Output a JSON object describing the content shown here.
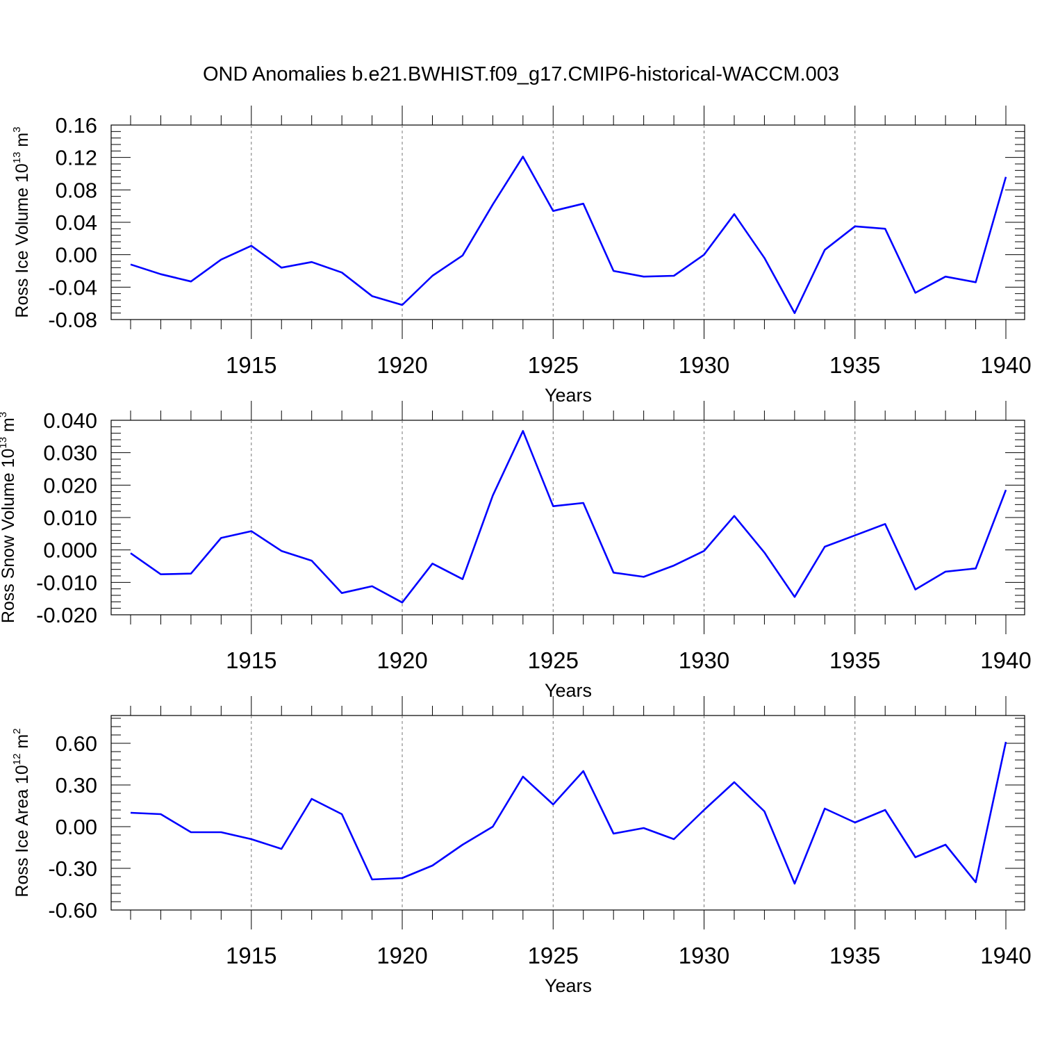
{
  "title": "OND Anomalies b.e21.BWHIST.f09_g17.CMIP6-historical-WACCM.003",
  "line_color": "#0000ff",
  "chart_data": [
    {
      "type": "line",
      "xlabel": "Years",
      "ylabel": "Ross Ice Volume 10",
      "ylabel_exp": "13",
      "ylabel_unit": " m",
      "ylabel_unit_exp": "3",
      "xlim": [
        1911,
        1940
      ],
      "ylim": [
        -0.08,
        0.16
      ],
      "x_ticks": [
        "1915",
        "1920",
        "1925",
        "1930",
        "1935",
        "1940"
      ],
      "y_ticks": [
        "0.16",
        "0.12",
        "0.08",
        "0.04",
        "0.00",
        "-0.04",
        "-0.08"
      ],
      "series": [
        {
          "x": [
            1911,
            1912,
            1913,
            1914,
            1915,
            1916,
            1917,
            1918,
            1919,
            1920,
            1921,
            1922,
            1923,
            1924,
            1925,
            1926,
            1927,
            1928,
            1929,
            1930,
            1931,
            1932,
            1933,
            1934,
            1935,
            1936,
            1937,
            1938,
            1939,
            1940
          ],
          "values": [
            -0.012,
            -0.024,
            -0.033,
            -0.006,
            0.011,
            -0.016,
            -0.009,
            -0.022,
            -0.051,
            -0.062,
            -0.026,
            -0.001,
            0.062,
            0.121,
            0.054,
            0.063,
            -0.02,
            -0.027,
            -0.026,
            0.0,
            0.05,
            -0.004,
            -0.072,
            0.006,
            0.035,
            0.032,
            -0.047,
            -0.027,
            -0.034,
            0.096
          ]
        }
      ]
    },
    {
      "type": "line",
      "xlabel": "Years",
      "ylabel": "Ross Snow Volume 10",
      "ylabel_exp": "13",
      "ylabel_unit": " m",
      "ylabel_unit_exp": "3",
      "xlim": [
        1911,
        1940
      ],
      "ylim": [
        -0.02,
        0.04
      ],
      "x_ticks": [
        "1915",
        "1920",
        "1925",
        "1930",
        "1935",
        "1940"
      ],
      "y_ticks": [
        "0.040",
        "0.030",
        "0.020",
        "0.010",
        "0.000",
        "-0.010",
        "-0.020"
      ],
      "series": [
        {
          "x": [
            1911,
            1912,
            1913,
            1914,
            1915,
            1916,
            1917,
            1918,
            1919,
            1920,
            1921,
            1922,
            1923,
            1924,
            1925,
            1926,
            1927,
            1928,
            1929,
            1930,
            1931,
            1932,
            1933,
            1934,
            1935,
            1936,
            1937,
            1938,
            1939,
            1940
          ],
          "values": [
            -0.001,
            -0.0075,
            -0.0073,
            0.0037,
            0.0058,
            -0.0003,
            -0.0033,
            -0.0133,
            -0.0112,
            -0.0162,
            -0.0042,
            -0.009,
            0.0168,
            0.0367,
            0.0135,
            0.0145,
            -0.007,
            -0.0083,
            -0.0048,
            -0.0003,
            0.0105,
            -0.0008,
            -0.0145,
            0.001,
            0.0045,
            0.008,
            -0.0122,
            -0.0067,
            -0.0057,
            0.0185
          ]
        }
      ]
    },
    {
      "type": "line",
      "xlabel": "Years",
      "ylabel": "Ross Ice Area 10",
      "ylabel_exp": "12",
      "ylabel_unit": " m",
      "ylabel_unit_exp": "2",
      "xlim": [
        1911,
        1940
      ],
      "ylim": [
        -0.6,
        0.8
      ],
      "x_ticks": [
        "1915",
        "1920",
        "1925",
        "1930",
        "1935",
        "1940"
      ],
      "y_ticks": [
        "0.60",
        "0.30",
        "0.00",
        "-0.30",
        "-0.60"
      ],
      "series": [
        {
          "x": [
            1911,
            1912,
            1913,
            1914,
            1915,
            1916,
            1917,
            1918,
            1919,
            1920,
            1921,
            1922,
            1923,
            1924,
            1925,
            1926,
            1927,
            1928,
            1929,
            1930,
            1931,
            1932,
            1933,
            1934,
            1935,
            1936,
            1937,
            1938,
            1939,
            1940
          ],
          "values": [
            0.1,
            0.09,
            -0.04,
            -0.04,
            -0.09,
            -0.16,
            0.2,
            0.09,
            -0.38,
            -0.37,
            -0.28,
            -0.13,
            0.0,
            0.36,
            0.16,
            0.4,
            -0.05,
            -0.01,
            -0.09,
            0.12,
            0.32,
            0.11,
            -0.41,
            0.13,
            0.03,
            0.12,
            -0.22,
            -0.13,
            -0.4,
            0.61
          ]
        }
      ]
    }
  ]
}
